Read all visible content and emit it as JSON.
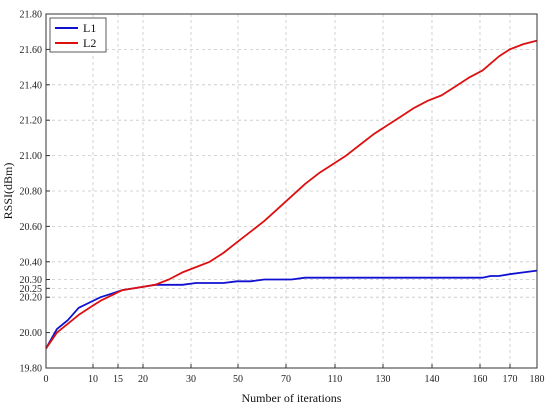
{
  "chart_data": {
    "type": "line",
    "xlabel": "Number of iterations",
    "ylabel": "RSSI(dBm)",
    "x_tick_labels": [
      "0",
      "10",
      "15",
      "20",
      "30",
      "50",
      "70",
      "110",
      "130",
      "140",
      "160",
      "170",
      "180"
    ],
    "y_ticks": [
      19.8,
      20.0,
      20.2,
      20.25,
      20.3,
      20.4,
      20.6,
      20.8,
      21.0,
      21.2,
      21.4,
      21.6,
      21.8
    ],
    "y_tick_labels": [
      "19.80",
      "20.00",
      "20.20",
      "20.25",
      "20.30",
      "20.40",
      "20.60",
      "20.80",
      "21.00",
      "21.20",
      "21.40",
      "21.60",
      "21.80"
    ],
    "ylim": [
      19.8,
      21.8
    ],
    "grid": true,
    "legend_position": "top-left",
    "series": [
      {
        "name": "L1",
        "color": "#1010d0",
        "x": [
          0,
          4,
          8,
          12,
          16,
          20,
          24,
          28,
          32,
          36,
          40,
          45,
          50,
          55,
          60,
          65,
          70,
          75,
          80,
          85,
          90,
          95,
          100,
          105,
          110,
          115,
          120,
          125,
          130,
          135,
          140,
          145,
          150,
          155,
          160,
          163,
          166,
          170,
          175,
          180
        ],
        "y": [
          19.91,
          20.02,
          20.07,
          20.14,
          20.17,
          20.2,
          20.22,
          20.24,
          20.25,
          20.26,
          20.27,
          20.27,
          20.27,
          20.28,
          20.28,
          20.28,
          20.29,
          20.29,
          20.3,
          20.3,
          20.3,
          20.31,
          20.31,
          20.31,
          20.31,
          20.31,
          20.31,
          20.31,
          20.31,
          20.31,
          20.31,
          20.31,
          20.31,
          20.31,
          20.31,
          20.32,
          20.32,
          20.33,
          20.34,
          20.35
        ]
      },
      {
        "name": "L2",
        "color": "#dd1010",
        "x": [
          0,
          4,
          8,
          12,
          16,
          20,
          24,
          28,
          32,
          36,
          40,
          45,
          50,
          55,
          60,
          65,
          70,
          75,
          80,
          85,
          90,
          95,
          100,
          105,
          110,
          115,
          120,
          125,
          130,
          135,
          140,
          145,
          150,
          155,
          160,
          163,
          166,
          170,
          175,
          180
        ],
        "y": [
          19.91,
          20.0,
          20.05,
          20.1,
          20.14,
          20.18,
          20.21,
          20.24,
          20.25,
          20.26,
          20.27,
          20.3,
          20.34,
          20.37,
          20.4,
          20.45,
          20.51,
          20.57,
          20.63,
          20.7,
          20.77,
          20.84,
          20.9,
          20.95,
          21.0,
          21.06,
          21.12,
          21.17,
          21.22,
          21.27,
          21.31,
          21.34,
          21.39,
          21.44,
          21.48,
          21.52,
          21.56,
          21.6,
          21.63,
          21.65
        ]
      }
    ]
  }
}
